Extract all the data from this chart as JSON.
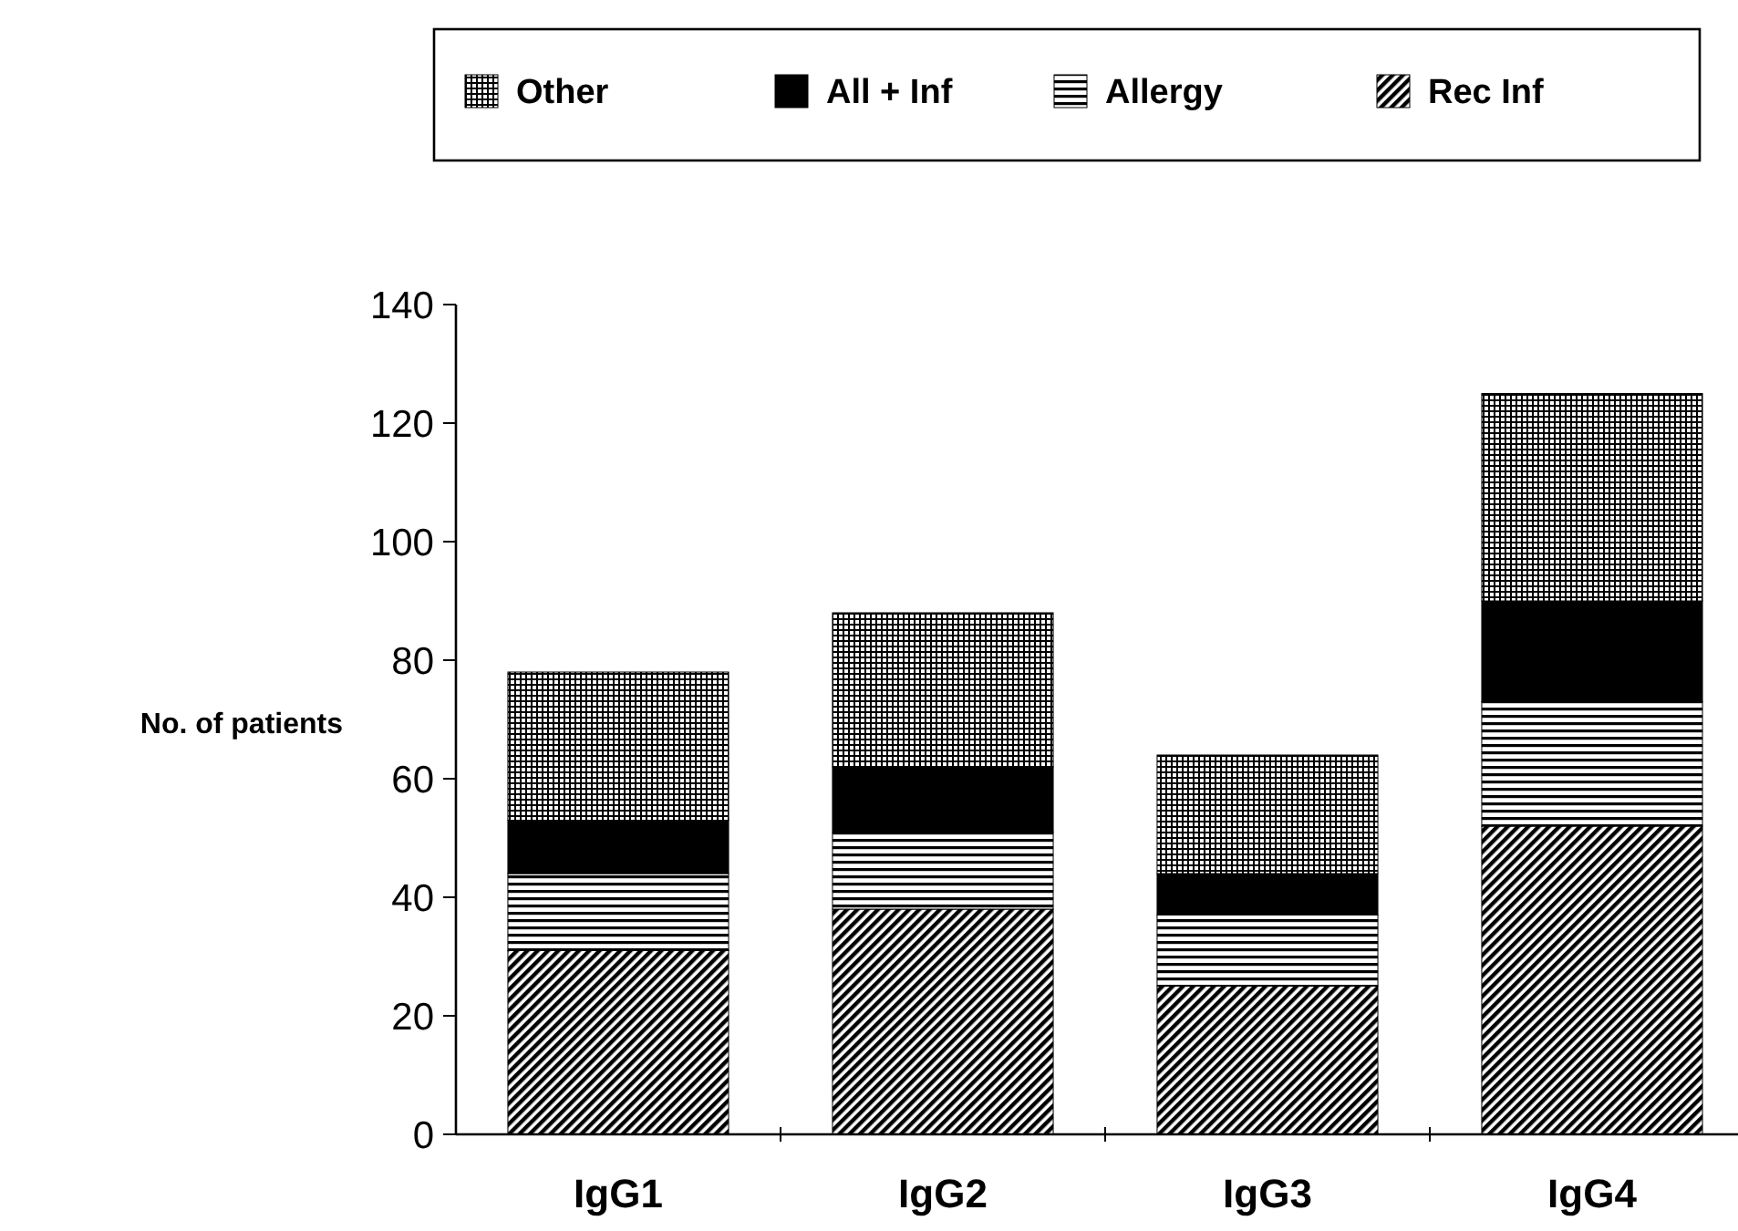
{
  "chart_data": {
    "type": "bar",
    "stacked": true,
    "ylabel": "No. of patients",
    "categories": [
      "IgG1",
      "IgG2",
      "IgG3",
      "IgG4"
    ],
    "ylim": [
      0,
      140
    ],
    "yticks": [
      0,
      20,
      40,
      60,
      80,
      100,
      120,
      140
    ],
    "legend": "top",
    "series": [
      {
        "name": "Rec Inf",
        "color": "#000000",
        "values": [
          31,
          38,
          25,
          52
        ]
      },
      {
        "name": "Allergy",
        "color": "#000000",
        "values": [
          13,
          13,
          12,
          21
        ]
      },
      {
        "name": "All + Inf",
        "color": "#000000",
        "values": [
          9,
          11,
          7,
          17
        ]
      },
      {
        "name": "Other",
        "color": "#000000",
        "values": [
          25,
          26,
          20,
          35
        ]
      }
    ]
  }
}
